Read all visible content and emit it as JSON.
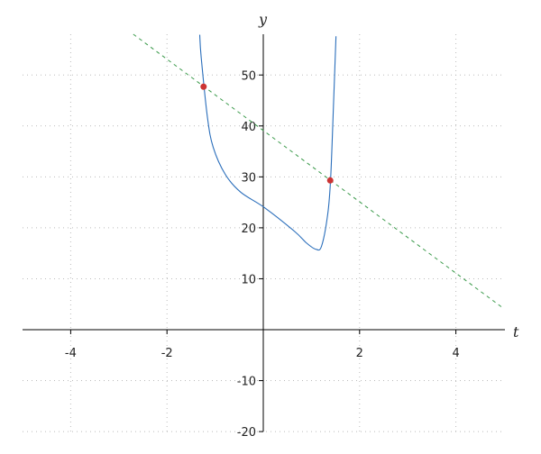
{
  "chart_data": {
    "type": "line",
    "title": "",
    "xlabel": "t",
    "ylabel": "y",
    "xlim": [
      -5,
      5
    ],
    "ylim": [
      -20,
      58
    ],
    "xticks": [
      -4,
      -2,
      2,
      4
    ],
    "yticks": [
      -20,
      -10,
      10,
      20,
      30,
      40,
      50
    ],
    "grid": true,
    "colors": {
      "curve": "#2a6ebb",
      "line": "#3a9a4a",
      "points": "#cc3333",
      "grid": "#bbbbbb"
    },
    "series": [
      {
        "style": "solid",
        "x": [
          -1.32,
          -1.29,
          -1.16,
          -1.04,
          -0.79,
          -0.47,
          0.02,
          0.65,
          0.9,
          1.09,
          1.21,
          1.34,
          1.4,
          1.46,
          1.51
        ],
        "y": [
          57.9,
          53.5,
          41.7,
          35.8,
          30.5,
          27.0,
          24.0,
          19.3,
          17.0,
          15.8,
          16.4,
          22.8,
          29.9,
          44.6,
          57.6
        ]
      },
      {
        "style": "dashed",
        "x": [
          -2.7,
          5
        ],
        "y": [
          58.0,
          4.1
        ]
      }
    ],
    "points": [
      {
        "x": -1.24,
        "y": 47.7
      },
      {
        "x": 1.39,
        "y": 29.3
      }
    ]
  }
}
